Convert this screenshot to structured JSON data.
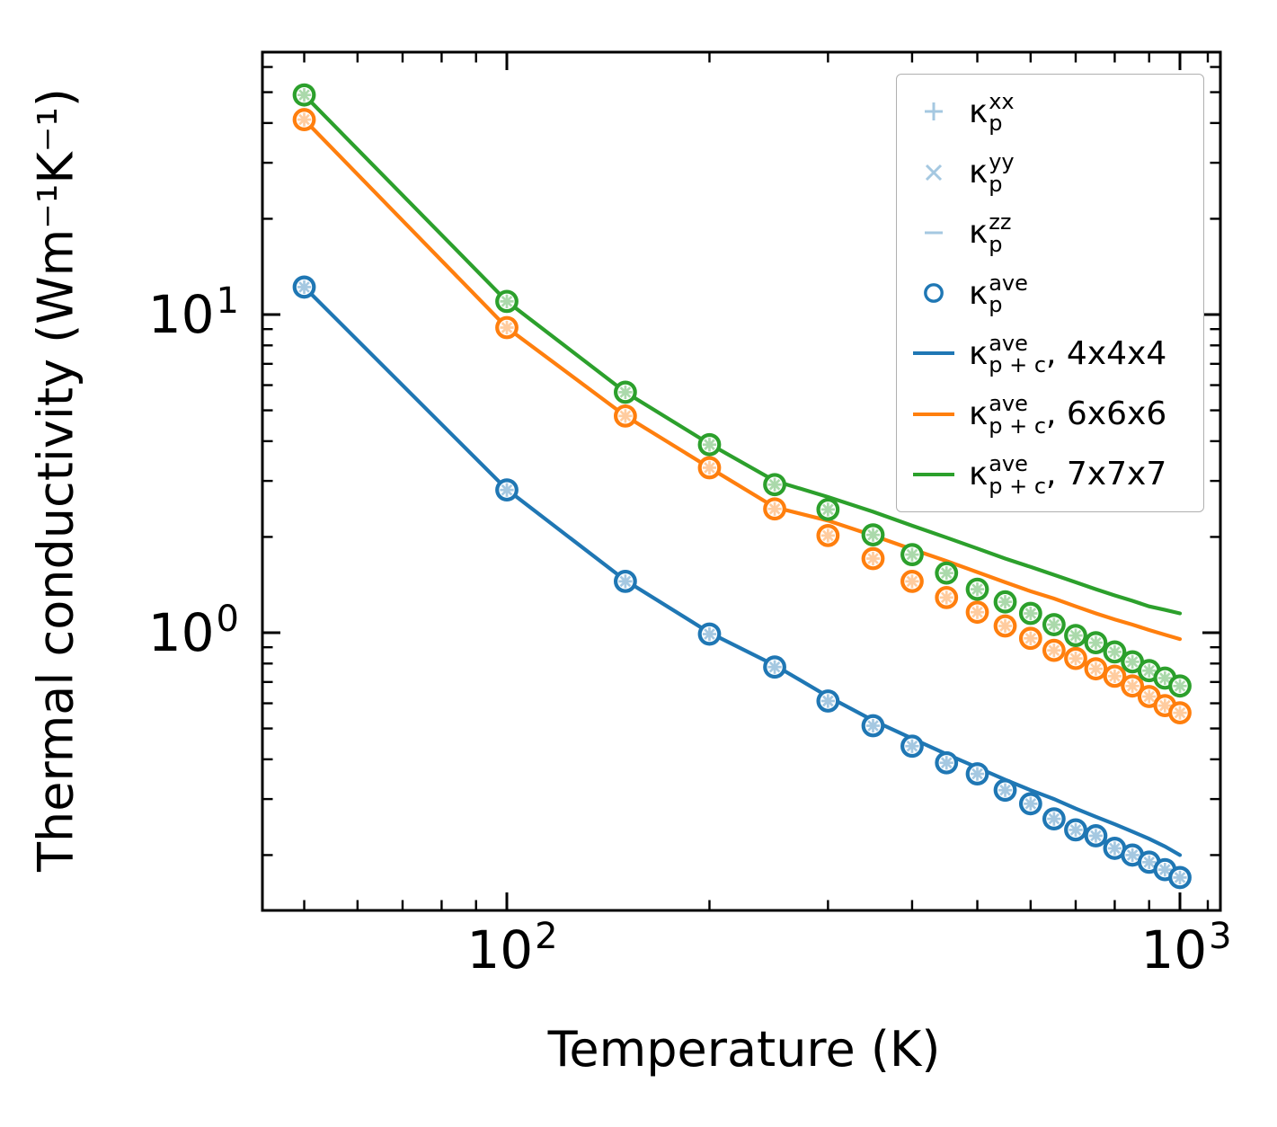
{
  "figure": {
    "background": "#ffffff"
  },
  "axes": {
    "xlabel": "Temperature (K)",
    "ylabel": "Thermal conductivity (Wm⁻¹K⁻¹)",
    "xscale": "log",
    "yscale": "log",
    "xlim": [
      43,
      1160
    ],
    "ylim": [
      0.134,
      67
    ],
    "x_tick_labels": [
      {
        "base": "10",
        "exp": "2",
        "value": 100
      },
      {
        "base": "10",
        "exp": "3",
        "value": 1000
      }
    ],
    "y_tick_labels": [
      {
        "base": "10",
        "exp": "1",
        "value": 10
      },
      {
        "base": "10",
        "exp": "0",
        "value": 1
      }
    ],
    "x_minor_ticks": [
      50,
      60,
      70,
      80,
      90,
      200,
      300,
      400,
      500,
      600,
      700,
      800,
      900,
      1100
    ],
    "y_minor_ticks": [
      0.2,
      0.3,
      0.4,
      0.5,
      0.6,
      0.7,
      0.8,
      0.9,
      2,
      3,
      4,
      5,
      6,
      7,
      8,
      9,
      20,
      30,
      40,
      50,
      60
    ],
    "grid": false
  },
  "legend": {
    "position": "upper right",
    "items": [
      {
        "marker": "plus",
        "color": "#a5c8e1",
        "symbol": "κ",
        "sup": "xx",
        "sub": "p",
        "suffix": ""
      },
      {
        "marker": "cross",
        "color": "#a5c8e1",
        "symbol": "κ",
        "sup": "yy",
        "sub": "p",
        "suffix": ""
      },
      {
        "marker": "dash",
        "color": "#a5c8e1",
        "symbol": "κ",
        "sup": "zz",
        "sub": "p",
        "suffix": ""
      },
      {
        "marker": "circle",
        "color": "#1f77b4",
        "symbol": "κ",
        "sup": "ave",
        "sub": "p",
        "suffix": ""
      },
      {
        "marker": "line",
        "color": "#1f77b4",
        "symbol": "κ",
        "sup": "ave",
        "sub": "p + c",
        "suffix": ", 4x4x4"
      },
      {
        "marker": "line",
        "color": "#ff7f0e",
        "symbol": "κ",
        "sup": "ave",
        "sub": "p + c",
        "suffix": ", 6x6x6"
      },
      {
        "marker": "line",
        "color": "#2ca02c",
        "symbol": "κ",
        "sup": "ave",
        "sub": "p + c",
        "suffix": ", 7x7x7"
      }
    ]
  },
  "colors": {
    "blue": "#1f77b4",
    "orange": "#ff7f0e",
    "green": "#2ca02c",
    "blue_tint": "#a5c8e1",
    "orange_tint": "#ffcc9f",
    "green_tint": "#abd9ab",
    "spine": "#000000",
    "legend_border": "#b0b0b0"
  },
  "chart_data": {
    "type": "line",
    "title": "",
    "xlabel": "Temperature (K)",
    "ylabel": "Thermal conductivity (Wm⁻¹K⁻¹)",
    "xscale": "log",
    "yscale": "log",
    "xlim": [
      43,
      1160
    ],
    "ylim": [
      0.134,
      67
    ],
    "legend_position": "upper right",
    "grid": false,
    "x": [
      50,
      100,
      150,
      200,
      250,
      300,
      350,
      400,
      450,
      500,
      550,
      600,
      650,
      700,
      750,
      800,
      850,
      900,
      950,
      1000
    ],
    "overlay_markers_note": "Each circle also carries light-tinted plus (xx), cross (yy) and dash (zz) markers of κ_p that overlap the κ_p^ave value at the same points, forming spoked wheels.",
    "series": [
      {
        "name": "κ_p^ave, 4x4x4 (circles)",
        "plot": "scatter",
        "marker": "circle",
        "color": "#1f77b4",
        "tint": "#a5c8e1",
        "values": [
          12.2,
          2.81,
          1.45,
          0.99,
          0.78,
          0.61,
          0.51,
          0.44,
          0.39,
          0.36,
          0.32,
          0.29,
          0.26,
          0.24,
          0.23,
          0.21,
          0.2,
          0.19,
          0.18,
          0.17
        ]
      },
      {
        "name": "κ_p^ave, 6x6x6 (circles)",
        "plot": "scatter",
        "marker": "circle",
        "color": "#ff7f0e",
        "tint": "#ffcc9f",
        "values": [
          41,
          9.1,
          4.8,
          3.3,
          2.45,
          2.02,
          1.71,
          1.45,
          1.29,
          1.16,
          1.05,
          0.96,
          0.88,
          0.83,
          0.77,
          0.73,
          0.68,
          0.63,
          0.59,
          0.56
        ]
      },
      {
        "name": "κ_p^ave, 7x7x7 (circles)",
        "plot": "scatter",
        "marker": "circle",
        "color": "#2ca02c",
        "tint": "#abd9ab",
        "values": [
          49,
          11.0,
          5.7,
          3.9,
          2.92,
          2.44,
          2.03,
          1.76,
          1.54,
          1.37,
          1.25,
          1.15,
          1.06,
          0.98,
          0.93,
          0.87,
          0.81,
          0.76,
          0.72,
          0.68
        ]
      },
      {
        "name": "κ_p+c^ave, 4x4x4 (line)",
        "plot": "line",
        "color": "#1f77b4",
        "values": [
          12.2,
          2.82,
          1.46,
          1.0,
          0.79,
          0.63,
          0.53,
          0.465,
          0.415,
          0.377,
          0.345,
          0.32,
          0.3,
          0.28,
          0.264,
          0.25,
          0.237,
          0.225,
          0.213,
          0.2
        ]
      },
      {
        "name": "κ_p+c^ave, 6x6x6 (line)",
        "plot": "line",
        "color": "#ff7f0e",
        "values": [
          41,
          9.1,
          4.8,
          3.3,
          2.48,
          2.25,
          2.02,
          1.83,
          1.68,
          1.55,
          1.44,
          1.35,
          1.28,
          1.21,
          1.15,
          1.1,
          1.06,
          1.02,
          0.985,
          0.955
        ]
      },
      {
        "name": "κ_p+c^ave, 7x7x7 (line)",
        "plot": "line",
        "color": "#2ca02c",
        "values": [
          49,
          11.0,
          5.7,
          3.92,
          3.0,
          2.67,
          2.4,
          2.17,
          1.99,
          1.84,
          1.71,
          1.61,
          1.52,
          1.44,
          1.37,
          1.31,
          1.26,
          1.21,
          1.18,
          1.15
        ]
      }
    ]
  }
}
